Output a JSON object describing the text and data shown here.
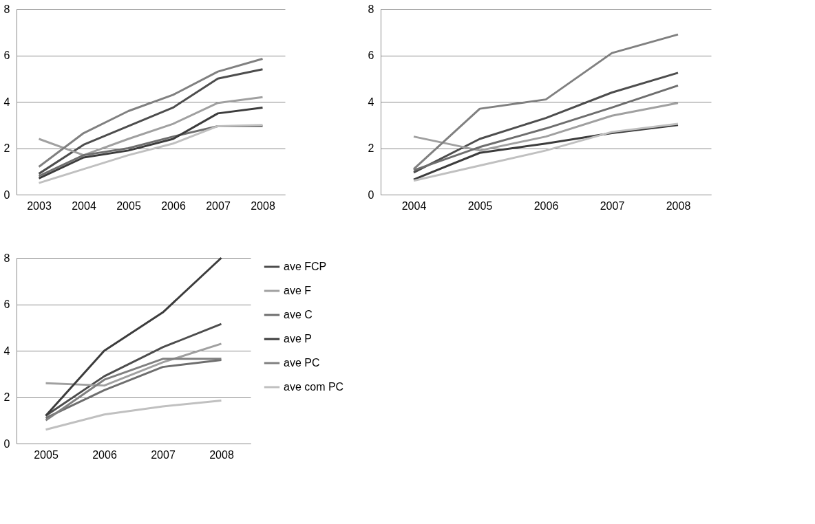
{
  "chart_data": [
    {
      "type": "line",
      "categories": [
        "2003",
        "2004",
        "2005",
        "2006",
        "2007",
        "2008"
      ],
      "ylim": [
        0,
        8
      ],
      "yticks": [
        0,
        2,
        4,
        6,
        8
      ],
      "grid": "y",
      "legend": false,
      "series": [
        {
          "color": "#4d4d4d",
          "values": [
            0.9,
            2.15,
            2.95,
            3.75,
            5.0,
            5.4
          ]
        },
        {
          "color": "#a0a0a0",
          "values": [
            2.4,
            1.7,
            2.4,
            3.05,
            3.95,
            4.2
          ]
        },
        {
          "color": "#6e6e6e",
          "values": [
            0.8,
            1.7,
            2.0,
            2.5,
            2.95,
            2.95
          ]
        },
        {
          "color": "#3c3c3c",
          "values": [
            0.7,
            1.6,
            1.9,
            2.4,
            3.5,
            3.75
          ]
        },
        {
          "color": "#808080",
          "values": [
            1.2,
            2.65,
            3.6,
            4.3,
            5.3,
            5.85
          ]
        },
        {
          "color": "#c0c0c0",
          "values": [
            0.5,
            1.1,
            1.7,
            2.2,
            2.95,
            3.0
          ]
        }
      ]
    },
    {
      "type": "line",
      "categories": [
        "2004",
        "2005",
        "2006",
        "2007",
        "2008"
      ],
      "ylim": [
        0,
        8
      ],
      "yticks": [
        0,
        2,
        4,
        6,
        8
      ],
      "grid": "y",
      "legend": false,
      "series": [
        {
          "color": "#4d4d4d",
          "values": [
            0.95,
            2.4,
            3.3,
            4.4,
            5.25
          ]
        },
        {
          "color": "#a0a0a0",
          "values": [
            2.5,
            1.9,
            2.5,
            3.4,
            3.95
          ]
        },
        {
          "color": "#6e6e6e",
          "values": [
            1.05,
            2.05,
            2.85,
            3.75,
            4.7
          ]
        },
        {
          "color": "#3c3c3c",
          "values": [
            0.65,
            1.8,
            2.2,
            2.65,
            3.0
          ]
        },
        {
          "color": "#808080",
          "values": [
            1.1,
            3.7,
            4.1,
            6.1,
            6.9
          ]
        },
        {
          "color": "#c0c0c0",
          "values": [
            0.6,
            1.25,
            1.9,
            2.7,
            3.05
          ]
        }
      ]
    },
    {
      "type": "line",
      "categories": [
        "2005",
        "2006",
        "2007",
        "2008"
      ],
      "ylim": [
        0,
        8
      ],
      "yticks": [
        0,
        2,
        4,
        6,
        8
      ],
      "grid": "y",
      "legend": "right",
      "series": [
        {
          "name": "ave FCP",
          "color": "#4d4d4d",
          "values": [
            1.2,
            2.9,
            4.15,
            5.15
          ]
        },
        {
          "name": "ave F",
          "color": "#a0a0a0",
          "values": [
            2.6,
            2.5,
            3.5,
            4.3
          ]
        },
        {
          "name": "ave C",
          "color": "#6e6e6e",
          "values": [
            1.1,
            2.3,
            3.3,
            3.6
          ]
        },
        {
          "name": "ave P",
          "color": "#3c3c3c",
          "values": [
            1.2,
            4.0,
            5.65,
            8.0
          ]
        },
        {
          "name": "ave PC",
          "color": "#808080",
          "values": [
            1.0,
            2.75,
            3.65,
            3.65
          ]
        },
        {
          "name": "ave com PC",
          "color": "#c0c0c0",
          "values": [
            0.6,
            1.25,
            1.6,
            1.85
          ]
        }
      ]
    }
  ]
}
